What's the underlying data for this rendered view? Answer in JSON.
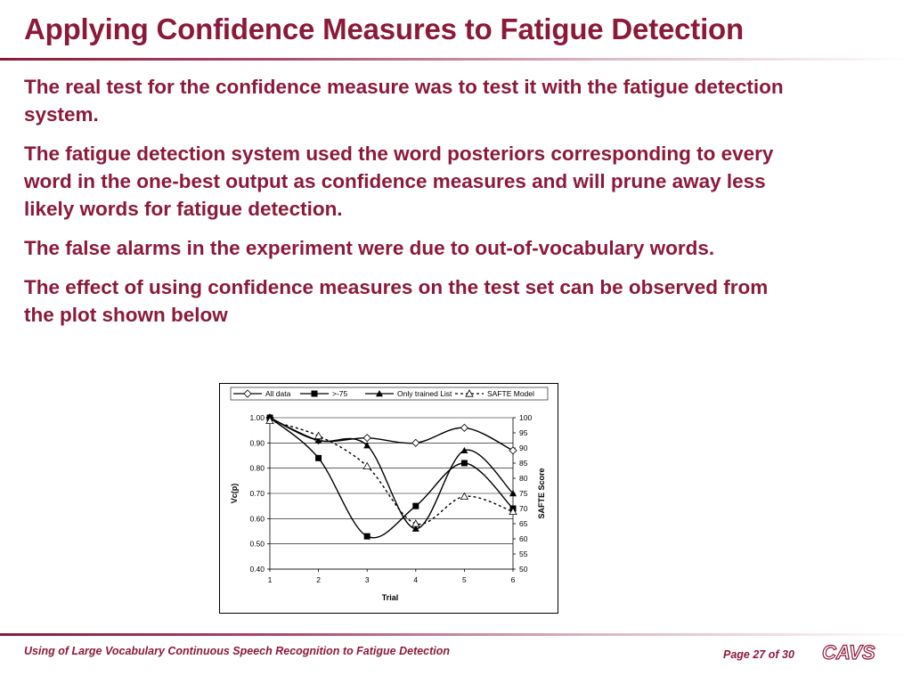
{
  "slide": {
    "title": "Applying Confidence Measures to Fatigue Detection",
    "bullets": [
      "The real test for the confidence measure was to test it with the fatigue detection system.",
      "The fatigue detection system used the word posteriors corresponding to every word in the one-best output as confidence measures and will prune away less likely words for fatigue detection.",
      "The false alarms in the experiment were due to out-of-vocabulary words.",
      "The effect of using confidence measures on the test set can be observed from the plot shown below"
    ]
  },
  "footer": {
    "left": "Using of Large Vocabulary Continuous Speech Recognition to Fatigue Detection",
    "page": "Page 27 of 30",
    "logo": "CAVS"
  },
  "colors": {
    "accent": "#8b1a3a"
  },
  "chart_data": {
    "type": "line",
    "x": [
      1,
      2,
      3,
      4,
      5,
      6
    ],
    "xlabel": "Trial",
    "ylabel": "Vc(p)",
    "y2label": "SAFTE Score",
    "ylim": [
      0.4,
      1.0
    ],
    "y2lim": [
      50,
      100
    ],
    "yticks": [
      "1.00",
      "0.90",
      "0.80",
      "0.70",
      "0.60",
      "0.50",
      "0.40"
    ],
    "y2ticks": [
      "100",
      "95",
      "90",
      "85",
      "80",
      "75",
      "70",
      "65",
      "60",
      "55",
      "50"
    ],
    "xticks": [
      "1",
      "2",
      "3",
      "4",
      "5",
      "6"
    ],
    "legend_position": "top",
    "series": [
      {
        "name": "All data",
        "axis": "left",
        "marker": "diamond-open",
        "style": "solid",
        "values": [
          1.0,
          0.91,
          0.92,
          0.9,
          0.96,
          0.87
        ]
      },
      {
        "name": ">-75",
        "axis": "left",
        "marker": "square-filled",
        "style": "solid",
        "values": [
          1.0,
          0.84,
          0.53,
          0.65,
          0.82,
          0.64
        ]
      },
      {
        "name": "Only trained List",
        "axis": "left",
        "marker": "triangle-filled",
        "style": "solid",
        "values": [
          1.0,
          0.91,
          0.89,
          0.56,
          0.87,
          0.7
        ]
      },
      {
        "name": "SAFTE Model",
        "axis": "right",
        "marker": "triangle-open",
        "style": "dashed",
        "values": [
          99,
          94,
          84,
          65,
          74,
          69
        ]
      }
    ]
  }
}
